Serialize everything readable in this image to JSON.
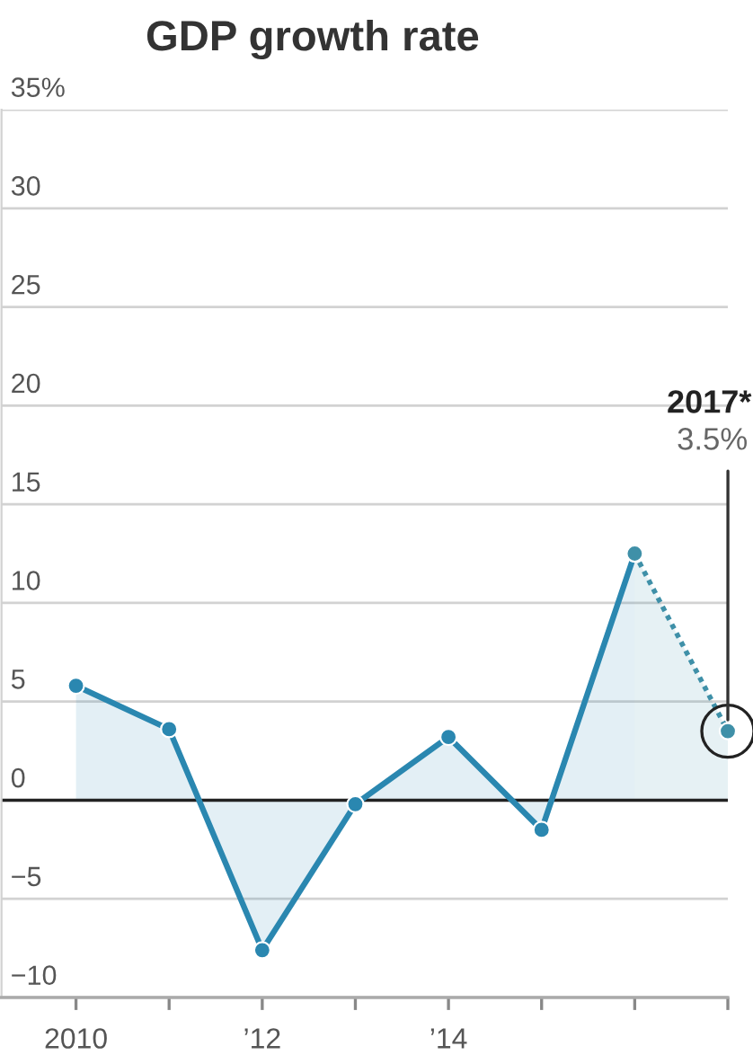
{
  "chart_data": {
    "type": "area",
    "title": "GDP growth rate",
    "series": [
      {
        "x": [
          2010,
          2011,
          2012,
          2013,
          2014,
          2015,
          2016
        ],
        "values": [
          5.8,
          3.6,
          -7.6,
          -0.2,
          3.2,
          -1.5,
          12.5
        ],
        "color": "#2a87b0",
        "line_style": "solid"
      },
      {
        "x": [
          2016,
          2017
        ],
        "values": [
          12.5,
          3.5
        ],
        "color": "#3f90a8",
        "line_style": "dotted"
      }
    ],
    "xlim": [
      2009.2,
      2017
    ],
    "xticks": [
      2010,
      {
        "value": 2011,
        "label": null
      },
      {
        "value": 2012,
        "label": "’12"
      },
      {
        "value": 2013,
        "label": null
      },
      {
        "value": 2014,
        "label": "’14"
      },
      {
        "value": 2015,
        "label": null
      },
      {
        "value": 2016,
        "label": null
      },
      {
        "value": 2017,
        "label": null
      }
    ],
    "ylim": [
      -10,
      35
    ],
    "yticks": [
      {
        "value": -10,
        "label": "−10"
      },
      {
        "value": -5,
        "label": "−5"
      },
      0,
      5,
      10,
      15,
      20,
      25,
      30,
      {
        "value": 35,
        "label": "35%"
      }
    ],
    "grid": "y",
    "marker": "circle",
    "ref_lines": [
      {
        "axis": "y",
        "value": 0,
        "color": "#222222"
      }
    ],
    "annotations": [
      "2017*",
      {
        "text": "3.5%",
        "x": 2017,
        "y": 3.5
      }
    ]
  }
}
